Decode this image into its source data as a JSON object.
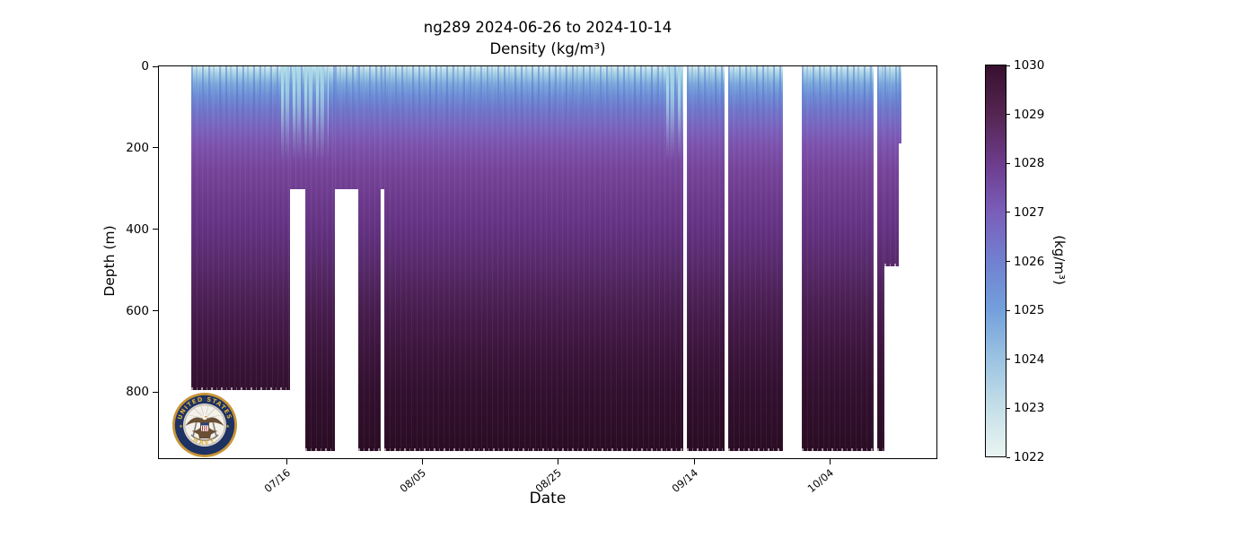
{
  "figure": {
    "title_line1": "ng289 2024-06-26 to 2024-10-14",
    "title_line2": "Density (kg/m³)"
  },
  "axes": {
    "xlabel": "Date",
    "ylabel": "Depth (m)"
  },
  "logo": {
    "name": "united-states-navy-seal",
    "top_text": "UNITED STATES",
    "bottom_text": "NAVY",
    "star_left": "★",
    "star_right": "★",
    "gold": "#c89435",
    "navy": "#1e3263"
  },
  "chart_data": {
    "type": "heatmap",
    "colormap": "cmocean-dense",
    "platform": "ng289",
    "variable": "Density",
    "units": "kg/m³",
    "date_start": "2024-06-26",
    "date_end": "2024-10-14",
    "x": {
      "label": "Date",
      "domain_days_after_start": [
        1.2,
        115.8
      ],
      "ticks": [
        {
          "day": 20,
          "label": "07/16"
        },
        {
          "day": 40,
          "label": "08/05"
        },
        {
          "day": 60,
          "label": "08/25"
        },
        {
          "day": 80,
          "label": "09/14"
        },
        {
          "day": 100,
          "label": "10/04"
        }
      ]
    },
    "y": {
      "label": "Depth (m)",
      "domain_m": [
        0,
        962
      ],
      "ticks_m": [
        0,
        200,
        400,
        600,
        800
      ]
    },
    "colorbar": {
      "label": "(kg/m³)",
      "vmin": 1022,
      "vmax": 1030,
      "ticks": [
        1022,
        1023,
        1024,
        1025,
        1026,
        1027,
        1028,
        1029,
        1030
      ],
      "stops": [
        {
          "v": 1022,
          "color": "#e9f4f1"
        },
        {
          "v": 1023,
          "color": "#c5dfe8"
        },
        {
          "v": 1024,
          "color": "#9bc3e1"
        },
        {
          "v": 1025,
          "color": "#73a0dc"
        },
        {
          "v": 1026,
          "color": "#7180d0"
        },
        {
          "v": 1027,
          "color": "#7a5eba"
        },
        {
          "v": 1028,
          "color": "#6c3c8c"
        },
        {
          "v": 1029,
          "color": "#552551"
        },
        {
          "v": 1030,
          "color": "#37102f"
        }
      ]
    },
    "profile_gradient": [
      {
        "f": 0.0,
        "color": "#d8edef"
      },
      {
        "f": 0.018,
        "color": "#a6d2e7"
      },
      {
        "f": 0.045,
        "color": "#7da9dd"
      },
      {
        "f": 0.075,
        "color": "#6f8ed7"
      },
      {
        "f": 0.11,
        "color": "#7277cb"
      },
      {
        "f": 0.155,
        "color": "#7b64bf"
      },
      {
        "f": 0.205,
        "color": "#7c52ac"
      },
      {
        "f": 0.265,
        "color": "#76459b"
      },
      {
        "f": 0.33,
        "color": "#6e3c8f"
      },
      {
        "f": 0.42,
        "color": "#633281"
      },
      {
        "f": 0.52,
        "color": "#562968"
      },
      {
        "f": 0.62,
        "color": "#481e4f"
      },
      {
        "f": 0.72,
        "color": "#3d163e"
      },
      {
        "f": 0.83,
        "color": "#32102f"
      },
      {
        "f": 1.0,
        "color": "#2a0c23"
      }
    ],
    "segments": [
      {
        "start_day": 5.9,
        "end_day": 20.5,
        "depth_top_m": 0,
        "depth_bottom_m": 795
      },
      {
        "start_day": 20.5,
        "end_day": 22.8,
        "depth_top_m": 0,
        "depth_bottom_m": 302
      },
      {
        "start_day": 22.8,
        "end_day": 27.1,
        "depth_top_m": 0,
        "depth_bottom_m": 945
      },
      {
        "start_day": 27.1,
        "end_day": 30.6,
        "depth_top_m": 0,
        "depth_bottom_m": 302
      },
      {
        "start_day": 30.6,
        "end_day": 33.9,
        "depth_top_m": 0,
        "depth_bottom_m": 945
      },
      {
        "start_day": 33.9,
        "end_day": 34.4,
        "depth_top_m": 0,
        "depth_bottom_m": 302
      },
      {
        "start_day": 34.4,
        "end_day": 78.5,
        "depth_top_m": 0,
        "depth_bottom_m": 945
      },
      {
        "start_day": 79.0,
        "end_day": 84.6,
        "depth_top_m": 0,
        "depth_bottom_m": 945
      },
      {
        "start_day": 85.1,
        "end_day": 93.1,
        "depth_top_m": 0,
        "depth_bottom_m": 945
      },
      {
        "start_day": 95.9,
        "end_day": 106.5,
        "depth_top_m": 0,
        "depth_bottom_m": 945
      },
      {
        "start_day": 107.0,
        "end_day": 108.1,
        "depth_top_m": 0,
        "depth_bottom_m": 945
      },
      {
        "start_day": 108.1,
        "end_day": 110.3,
        "depth_top_m": 0,
        "depth_bottom_m": 490
      },
      {
        "start_day": 110.3,
        "end_day": 110.7,
        "depth_top_m": 0,
        "depth_bottom_m": 190
      }
    ],
    "surface_events": [
      {
        "start_day": 19.2,
        "end_day": 26.2,
        "depth_m": 230
      },
      {
        "start_day": 76.0,
        "end_day": 78.5,
        "depth_m": 230
      }
    ]
  }
}
